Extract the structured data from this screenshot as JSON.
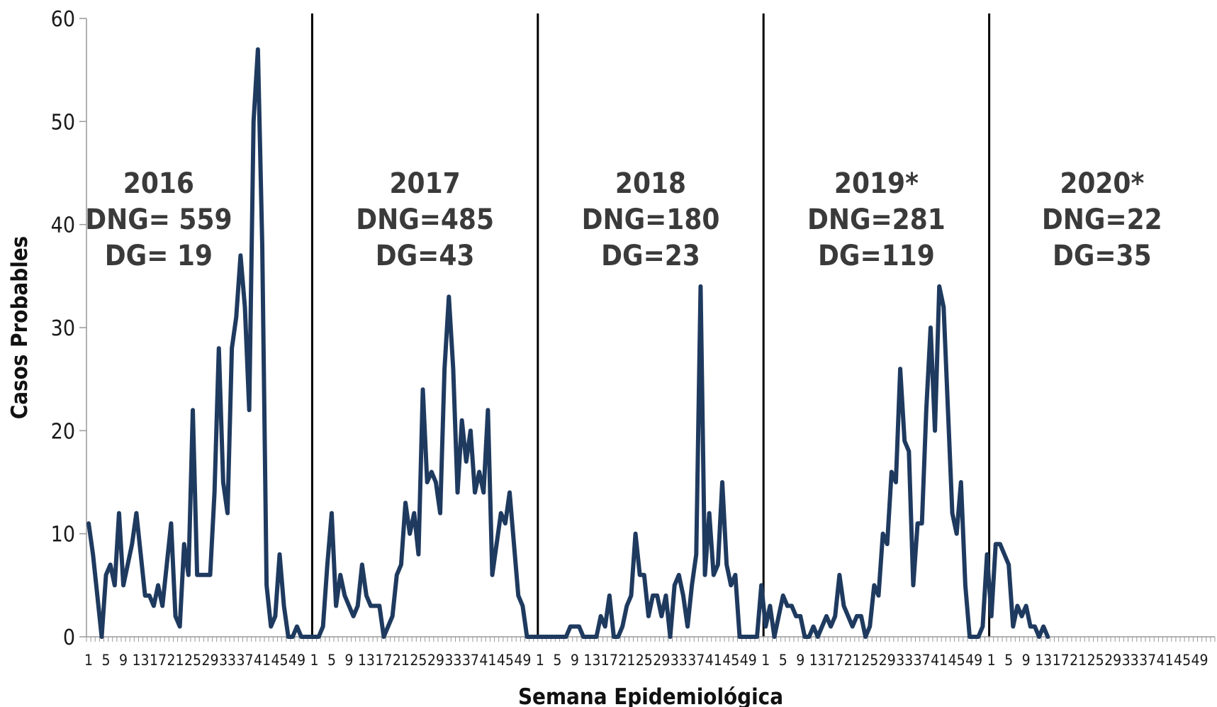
{
  "chart_data": {
    "type": "line",
    "xlabel": "Semana Epidemiológica",
    "ylabel": "Casos Probables",
    "ylim": [
      0,
      60
    ],
    "yticks": [
      0,
      10,
      20,
      30,
      40,
      50,
      60
    ],
    "x_tick_labels": [
      "1",
      "5",
      "9",
      "13",
      "17",
      "21",
      "25",
      "29",
      "33",
      "37",
      "41",
      "45",
      "49"
    ],
    "weeks_per_year": 52,
    "line_color": "#1f3a5f",
    "divider_color": "#000000",
    "annotations": [
      {
        "year": "2016",
        "dng": "DNG= 559",
        "dg": "DG= 19"
      },
      {
        "year": "2017",
        "dng": "DNG=485",
        "dg": "DG=43"
      },
      {
        "year": "2018",
        "dng": "DNG=180",
        "dg": "DG=23"
      },
      {
        "year": "2019*",
        "dng": "DNG=281",
        "dg": "DG=119"
      },
      {
        "year": "2020*",
        "dng": "DNG=22",
        "dg": "DG=35"
      }
    ],
    "series": [
      {
        "values": [
          11,
          8,
          4,
          0,
          6,
          7,
          5,
          12,
          5,
          7,
          9,
          12,
          8,
          4,
          4,
          3,
          5,
          3,
          7,
          11,
          2,
          1,
          9,
          6,
          22,
          6,
          6,
          6,
          6,
          14,
          28,
          15,
          12,
          28,
          31,
          37,
          32,
          22,
          50,
          57,
          38,
          5,
          1,
          2,
          8,
          3,
          0,
          0,
          1,
          0,
          0,
          0,
          0,
          0,
          1,
          7,
          12,
          3,
          6,
          4,
          3,
          2,
          3,
          7,
          4,
          3,
          3,
          3,
          0,
          1,
          2,
          6,
          7,
          13,
          10,
          12,
          8,
          24,
          15,
          16,
          15,
          12,
          26,
          33,
          26,
          14,
          21,
          17,
          20,
          14,
          16,
          14,
          22,
          6,
          9,
          12,
          11,
          14,
          9,
          4,
          3,
          0,
          0,
          0,
          0,
          0,
          0,
          0,
          0,
          0,
          0,
          1,
          1,
          1,
          0,
          0,
          0,
          0,
          2,
          1,
          4,
          0,
          0,
          1,
          3,
          4,
          10,
          6,
          6,
          2,
          4,
          4,
          2,
          4,
          0,
          5,
          6,
          4,
          1,
          5,
          8,
          34,
          6,
          12,
          6,
          7,
          15,
          7,
          5,
          6,
          0,
          0,
          0,
          0,
          0,
          5,
          1,
          3,
          0,
          2,
          4,
          3,
          3,
          2,
          2,
          0,
          0,
          1,
          0,
          1,
          2,
          1,
          2,
          6,
          3,
          2,
          1,
          2,
          2,
          0,
          1,
          5,
          4,
          10,
          9,
          16,
          15,
          26,
          19,
          18,
          5,
          11,
          11,
          22,
          30,
          20,
          34,
          32,
          22,
          12,
          10,
          15,
          5,
          0,
          0,
          0,
          1,
          8,
          2,
          9,
          9,
          8,
          7,
          1,
          3,
          2,
          3,
          1,
          1,
          0,
          1,
          0
        ]
      }
    ]
  }
}
